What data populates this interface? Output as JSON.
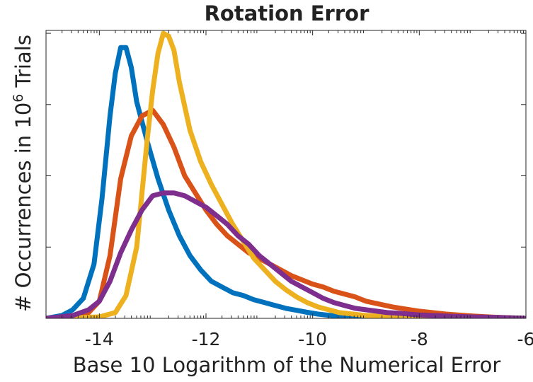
{
  "chart_data": {
    "type": "line",
    "title": "Rotation Error",
    "xlabel": "Base 10 Logarithm of the Numerical Error",
    "ylabel_parts": [
      "# Occurrences in 10",
      "6",
      " Trials"
    ],
    "xlim": [
      -15,
      -6
    ],
    "ylim": [
      0,
      1
    ],
    "x_ticks": [
      -14,
      -12,
      -10,
      -8,
      -6
    ],
    "x_tick_labels": [
      "-14",
      "-12",
      "-10",
      "-8",
      "-6"
    ],
    "y_ticks": [
      0.25,
      0.5,
      0.75,
      1.0
    ],
    "y_tick_labels_visible": false,
    "grid": false,
    "legend": "none",
    "series": [
      {
        "color": "#0072BD",
        "x": [
          -15.0,
          -14.7,
          -14.5,
          -14.3,
          -14.1,
          -13.95,
          -13.8,
          -13.7,
          -13.6,
          -13.5,
          -13.4,
          -13.3,
          -13.1,
          -12.9,
          -12.7,
          -12.5,
          -12.3,
          -12.1,
          -11.9,
          -11.7,
          -11.5,
          -11.3,
          -11.1,
          -10.9,
          -10.7,
          -10.5,
          -10.3,
          -10.1,
          -9.9,
          -9.7,
          -9.5,
          -9.0,
          -8.5,
          -8.0,
          -7.5,
          -7.0,
          -6.5,
          -6.0
        ],
        "y": [
          0.0,
          0.01,
          0.03,
          0.07,
          0.19,
          0.42,
          0.71,
          0.86,
          0.95,
          0.95,
          0.88,
          0.76,
          0.62,
          0.49,
          0.38,
          0.29,
          0.22,
          0.17,
          0.13,
          0.11,
          0.09,
          0.08,
          0.065,
          0.055,
          0.045,
          0.035,
          0.028,
          0.021,
          0.015,
          0.011,
          0.008,
          0.004,
          0.002,
          0.001,
          0.0005,
          0.0002,
          0.0001,
          0.0
        ]
      },
      {
        "color": "#D95319",
        "x": [
          -15.0,
          -14.5,
          -14.2,
          -14.0,
          -13.8,
          -13.6,
          -13.4,
          -13.2,
          -13.0,
          -12.8,
          -12.6,
          -12.4,
          -12.2,
          -12.0,
          -11.8,
          -11.6,
          -11.4,
          -11.2,
          -11.0,
          -10.8,
          -10.6,
          -10.4,
          -10.2,
          -10.0,
          -9.8,
          -9.6,
          -9.4,
          -9.2,
          -9.0,
          -8.5,
          -8.0,
          -7.5,
          -7.0,
          -6.5,
          -6.0
        ],
        "y": [
          0.0,
          0.005,
          0.02,
          0.06,
          0.22,
          0.49,
          0.64,
          0.71,
          0.73,
          0.68,
          0.6,
          0.5,
          0.44,
          0.38,
          0.33,
          0.29,
          0.26,
          0.23,
          0.21,
          0.19,
          0.17,
          0.15,
          0.135,
          0.12,
          0.11,
          0.095,
          0.085,
          0.075,
          0.06,
          0.04,
          0.025,
          0.015,
          0.008,
          0.003,
          0.0
        ]
      },
      {
        "color": "#EDB120",
        "x": [
          -15.0,
          -14.0,
          -13.7,
          -13.5,
          -13.3,
          -13.2,
          -13.1,
          -13.0,
          -12.9,
          -12.8,
          -12.7,
          -12.6,
          -12.5,
          -12.3,
          -12.1,
          -11.9,
          -11.7,
          -11.5,
          -11.3,
          -11.1,
          -10.9,
          -10.7,
          -10.5,
          -10.3,
          -10.1,
          -9.9,
          -9.7,
          -9.5,
          -9.0,
          -8.5,
          -8.0,
          -7.5,
          -7.0,
          -6.0
        ],
        "y": [
          0.0,
          0.005,
          0.02,
          0.08,
          0.25,
          0.44,
          0.63,
          0.8,
          0.93,
          1.0,
          0.99,
          0.94,
          0.83,
          0.66,
          0.55,
          0.47,
          0.4,
          0.33,
          0.27,
          0.21,
          0.17,
          0.13,
          0.1,
          0.075,
          0.055,
          0.04,
          0.03,
          0.02,
          0.01,
          0.005,
          0.002,
          0.001,
          0.0005,
          0.0
        ]
      },
      {
        "color": "#7E2F8E",
        "x": [
          -15.0,
          -14.5,
          -14.2,
          -14.0,
          -13.8,
          -13.6,
          -13.4,
          -13.2,
          -13.0,
          -12.8,
          -12.6,
          -12.4,
          -12.2,
          -12.0,
          -11.8,
          -11.6,
          -11.4,
          -11.2,
          -11.0,
          -10.8,
          -10.6,
          -10.4,
          -10.2,
          -10.0,
          -9.8,
          -9.6,
          -9.4,
          -9.2,
          -9.0,
          -8.8,
          -8.6,
          -8.4,
          -8.2,
          -8.0,
          -7.5,
          -7.0,
          -6.5,
          -6.0
        ],
        "y": [
          0.0,
          0.01,
          0.03,
          0.06,
          0.13,
          0.23,
          0.31,
          0.38,
          0.43,
          0.44,
          0.44,
          0.43,
          0.41,
          0.39,
          0.36,
          0.33,
          0.29,
          0.26,
          0.22,
          0.19,
          0.16,
          0.13,
          0.11,
          0.09,
          0.07,
          0.055,
          0.045,
          0.035,
          0.03,
          0.025,
          0.02,
          0.018,
          0.015,
          0.012,
          0.008,
          0.005,
          0.003,
          0.0
        ]
      }
    ]
  }
}
